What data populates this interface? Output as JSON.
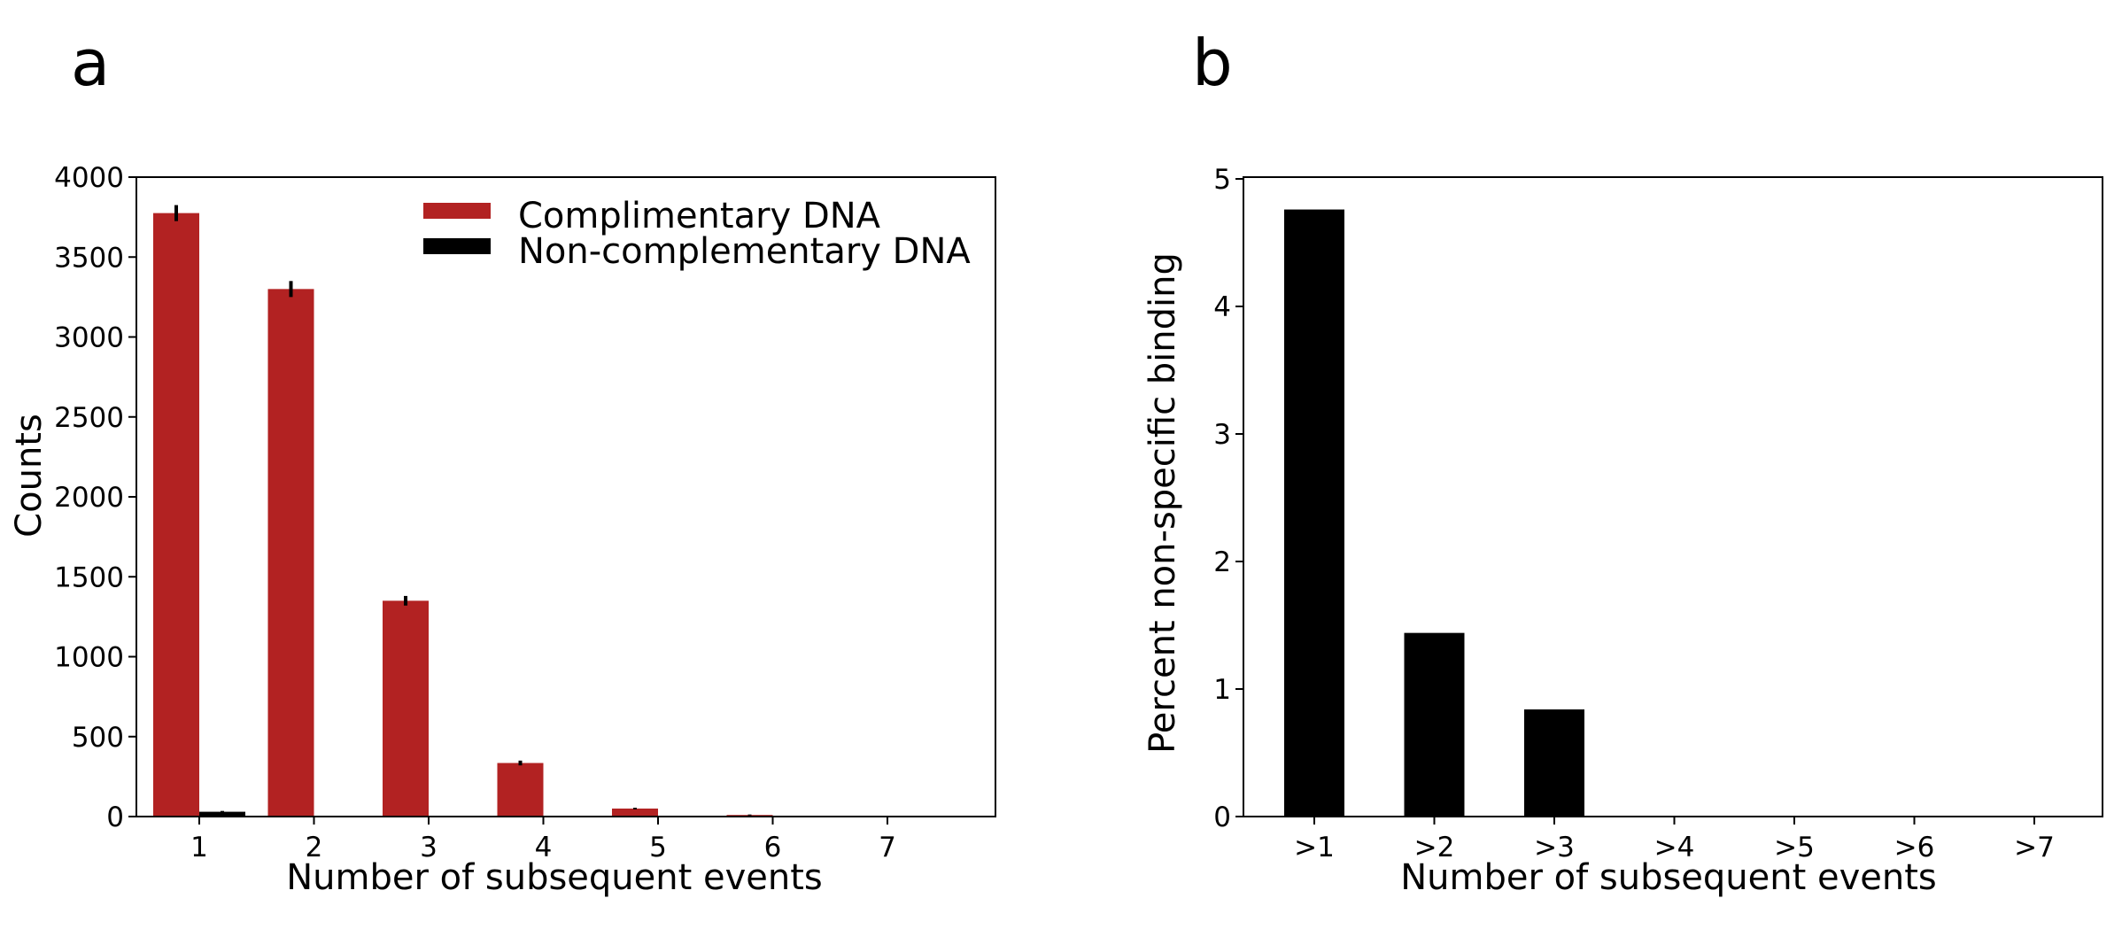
{
  "figure": {
    "panels": [
      {
        "label": "a",
        "chart_data": {
          "type": "bar",
          "xlabel": "Number of subsequent events",
          "ylabel": "Counts",
          "categories": [
            "1",
            "2",
            "3",
            "4",
            "5",
            "6",
            "7"
          ],
          "ylim": [
            0,
            4000
          ],
          "yticks": [
            "0",
            "500",
            "1000",
            "1500",
            "2000",
            "2500",
            "3000",
            "3500",
            "4000"
          ],
          "grid": false,
          "legend_position": "top-right",
          "series": [
            {
              "name": "Complimentary DNA",
              "color": "#b22222",
              "values": [
                3775,
                3300,
                1350,
                335,
                50,
                10,
                0
              ],
              "errors": [
                50,
                50,
                30,
                15,
                5,
                3,
                0
              ]
            },
            {
              "name": "Non-complementary DNA",
              "color": "#000000",
              "values": [
                30,
                0,
                0,
                0,
                0,
                0,
                0
              ],
              "errors": [
                5,
                0,
                0,
                0,
                0,
                0,
                0
              ]
            }
          ]
        }
      },
      {
        "label": "b",
        "chart_data": {
          "type": "bar",
          "xlabel": "Number of subsequent events",
          "ylabel": "Percent non-specific binding",
          "categories": [
            ">1",
            ">2",
            ">3",
            ">4",
            ">5",
            ">6",
            ">7"
          ],
          "ylim": [
            0,
            5
          ],
          "yticks": [
            "0",
            "1",
            "2",
            "3",
            "4",
            "5"
          ],
          "grid": false,
          "series": [
            {
              "color": "#000000",
              "values": [
                4.76,
                1.44,
                0.84,
                0,
                0,
                0,
                0
              ]
            }
          ]
        }
      }
    ]
  }
}
